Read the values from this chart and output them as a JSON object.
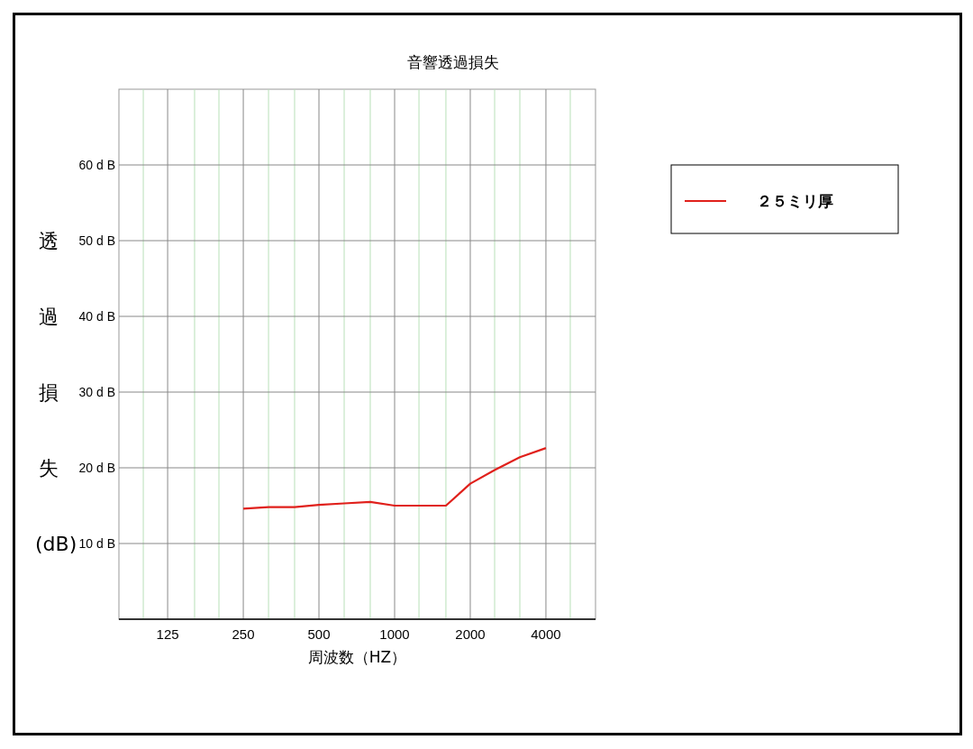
{
  "chart_data": {
    "type": "line",
    "title": "音響透過損失",
    "xlabel": "周波数（HZ）",
    "ylabel": "透過損失(dB)",
    "log": "x",
    "xlim": [
      80,
      6300
    ],
    "xticks": [
      {
        "value": 100,
        "label": null
      },
      125,
      {
        "value": 160,
        "label": null
      },
      {
        "value": 200,
        "label": null
      },
      250,
      {
        "value": 315,
        "label": null
      },
      {
        "value": 400,
        "label": null
      },
      500,
      {
        "value": 630,
        "label": null
      },
      {
        "value": 800,
        "label": null
      },
      1000,
      {
        "value": 1250,
        "label": null
      },
      {
        "value": 1600,
        "label": null
      },
      2000,
      {
        "value": 2500,
        "label": null
      },
      {
        "value": 3150,
        "label": null
      },
      4000,
      {
        "value": 5000,
        "label": null
      }
    ],
    "ylim": [
      0,
      70
    ],
    "yticks": [
      {
        "value": 10,
        "label": "10 d B"
      },
      {
        "value": 20,
        "label": "20 d B"
      },
      {
        "value": 30,
        "label": "30 d B"
      },
      {
        "value": 40,
        "label": "40 d B"
      },
      {
        "value": 50,
        "label": "50 d B"
      },
      {
        "value": 60,
        "label": "60 d B"
      }
    ],
    "grid": true,
    "legend": "right",
    "marker": "none",
    "line_style": "solid",
    "x": [
      250,
      315,
      400,
      500,
      630,
      800,
      1000,
      1250,
      1600,
      2000,
      2500,
      3150,
      4000
    ],
    "series": [
      {
        "name": "２５ミリ厚",
        "color": "#e0201b",
        "values": [
          14.6,
          14.8,
          14.8,
          15.1,
          15.3,
          15.5,
          15.0,
          15.0,
          15.0,
          17.9,
          19.7,
          21.4,
          22.6
        ]
      }
    ]
  }
}
